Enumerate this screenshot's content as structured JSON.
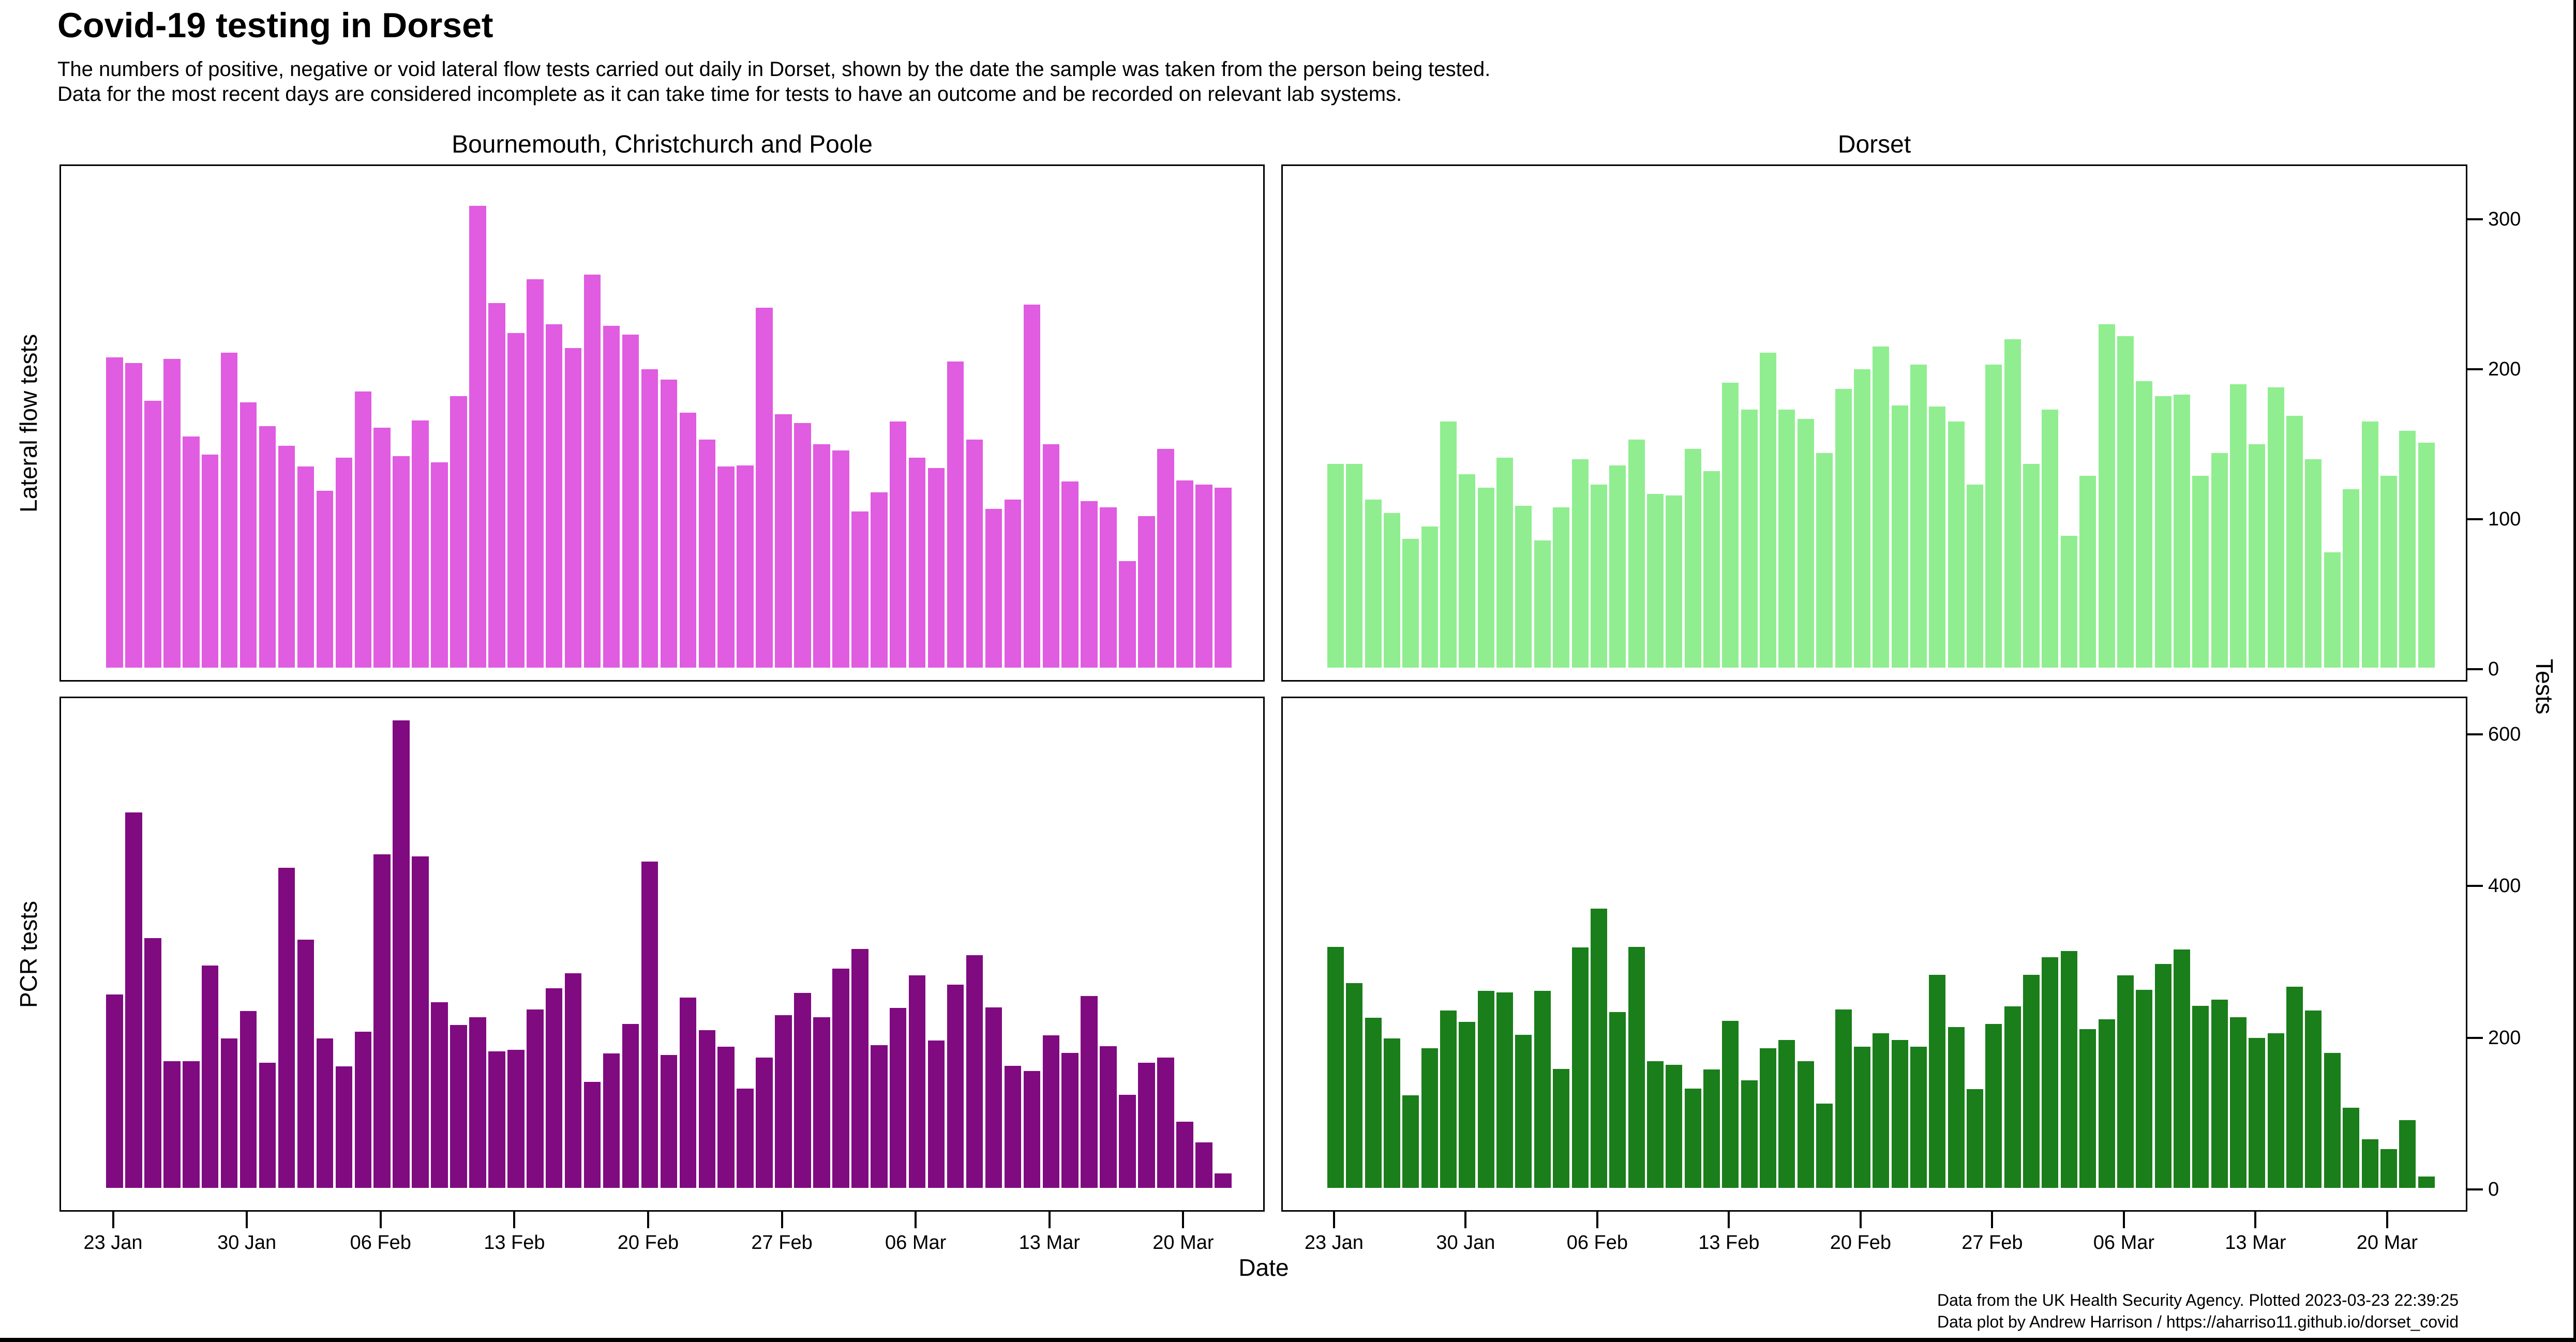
{
  "title": "Covid-19 testing in Dorset",
  "subtitle_line1": "The numbers of positive, negative or void lateral flow tests carried out daily in Dorset, shown by the date the sample was taken from the person being tested.",
  "subtitle_line2": "Data for the most recent days are considered incomplete as it can take time for tests to have an outcome and be recorded on relevant lab systems.",
  "footer_line1": "Data from the UK Health Security Agency. Plotted 2023-03-23 22:39:25",
  "footer_line2": "Data plot by Andrew Harrison / https://aharriso11.github.io/dorset_covid",
  "xlabel": "Date",
  "ylabel": "Tests",
  "col_titles": [
    "Bournemouth, Christchurch and Poole",
    "Dorset"
  ],
  "row_labels": [
    "Lateral flow tests",
    "PCR tests"
  ],
  "colors": {
    "lft_bcp": "#e05ce0",
    "lft_dorset": "#90ee90",
    "pcr_bcp": "#800a80",
    "pcr_dorset": "#1a7e1a",
    "axis": "#000000"
  },
  "chart_data": {
    "type": "bar",
    "x_start_label": "23 Jan",
    "x_end_label": "20 Mar",
    "n_days": 59,
    "x_ticks": [
      {
        "label": "23 Jan",
        "day": 0
      },
      {
        "label": "30 Jan",
        "day": 7
      },
      {
        "label": "06 Feb",
        "day": 14
      },
      {
        "label": "13 Feb",
        "day": 21
      },
      {
        "label": "20 Feb",
        "day": 28
      },
      {
        "label": "27 Feb",
        "day": 35
      },
      {
        "label": "06 Mar",
        "day": 42
      },
      {
        "label": "13 Mar",
        "day": 49
      },
      {
        "label": "20 Mar",
        "day": 56
      }
    ],
    "panels": [
      {
        "id": "lft_bcp",
        "region": "Bournemouth, Christchurch and Poole",
        "measure": "Lateral flow tests",
        "ylim": [
          0,
          300
        ],
        "yticks": [
          0,
          100,
          200,
          300
        ],
        "values": [
          207,
          203,
          178,
          206,
          154,
          142,
          210,
          177,
          161,
          148,
          134,
          118,
          140,
          184,
          160,
          141,
          165,
          137,
          181,
          308,
          243,
          223,
          259,
          229,
          213,
          262,
          228,
          222,
          199,
          192,
          170,
          152,
          134,
          135,
          240,
          169,
          163,
          149,
          145,
          104,
          117,
          164,
          140,
          133,
          204,
          152,
          106,
          112,
          242,
          149,
          124,
          111,
          107,
          71,
          101,
          146,
          125,
          122,
          120
        ]
      },
      {
        "id": "lft_dorset",
        "region": "Dorset",
        "measure": "Lateral flow tests",
        "ylim": [
          0,
          300
        ],
        "yticks": [
          0,
          100,
          200,
          300
        ],
        "values": [
          136,
          136,
          112,
          103,
          86,
          94,
          164,
          129,
          120,
          140,
          108,
          85,
          107,
          139,
          122,
          135,
          152,
          116,
          115,
          146,
          131,
          190,
          172,
          210,
          172,
          166,
          143,
          186,
          199,
          214,
          175,
          202,
          174,
          164,
          122,
          202,
          219,
          136,
          172,
          88,
          128,
          229,
          221,
          191,
          181,
          182,
          128,
          143,
          189,
          149,
          187,
          168,
          139,
          77,
          119,
          164,
          128,
          158,
          150
        ]
      },
      {
        "id": "pcr_bcp",
        "region": "Bournemouth, Christchurch and Poole",
        "measure": "PCR tests",
        "ylim": [
          0,
          600
        ],
        "yticks": [
          0,
          200,
          400,
          600
        ],
        "values": [
          255,
          495,
          329,
          167,
          167,
          293,
          197,
          233,
          165,
          422,
          327,
          197,
          160,
          206,
          440,
          616,
          437,
          245,
          215,
          225,
          180,
          182,
          235,
          263,
          283,
          140,
          177,
          216,
          430,
          175,
          251,
          208,
          186,
          131,
          172,
          228,
          257,
          225,
          289,
          315,
          188,
          237,
          280,
          194,
          268,
          307,
          238,
          161,
          154,
          201,
          178,
          253,
          187,
          123,
          165,
          172,
          87,
          60,
          19
        ]
      },
      {
        "id": "pcr_dorset",
        "region": "Dorset",
        "measure": "PCR tests",
        "ylim": [
          0,
          600
        ],
        "yticks": [
          0,
          200,
          400,
          600
        ],
        "values": [
          318,
          270,
          224,
          197,
          122,
          184,
          234,
          219,
          260,
          258,
          202,
          260,
          157,
          317,
          368,
          232,
          318,
          167,
          162,
          131,
          156,
          220,
          142,
          184,
          195,
          167,
          111,
          235,
          186,
          204,
          195,
          186,
          281,
          212,
          130,
          216,
          239,
          281,
          304,
          312,
          209,
          222,
          280,
          261,
          295,
          314,
          240,
          248,
          225,
          198,
          204,
          265,
          234,
          178,
          106,
          64,
          51,
          89,
          15
        ]
      }
    ]
  }
}
